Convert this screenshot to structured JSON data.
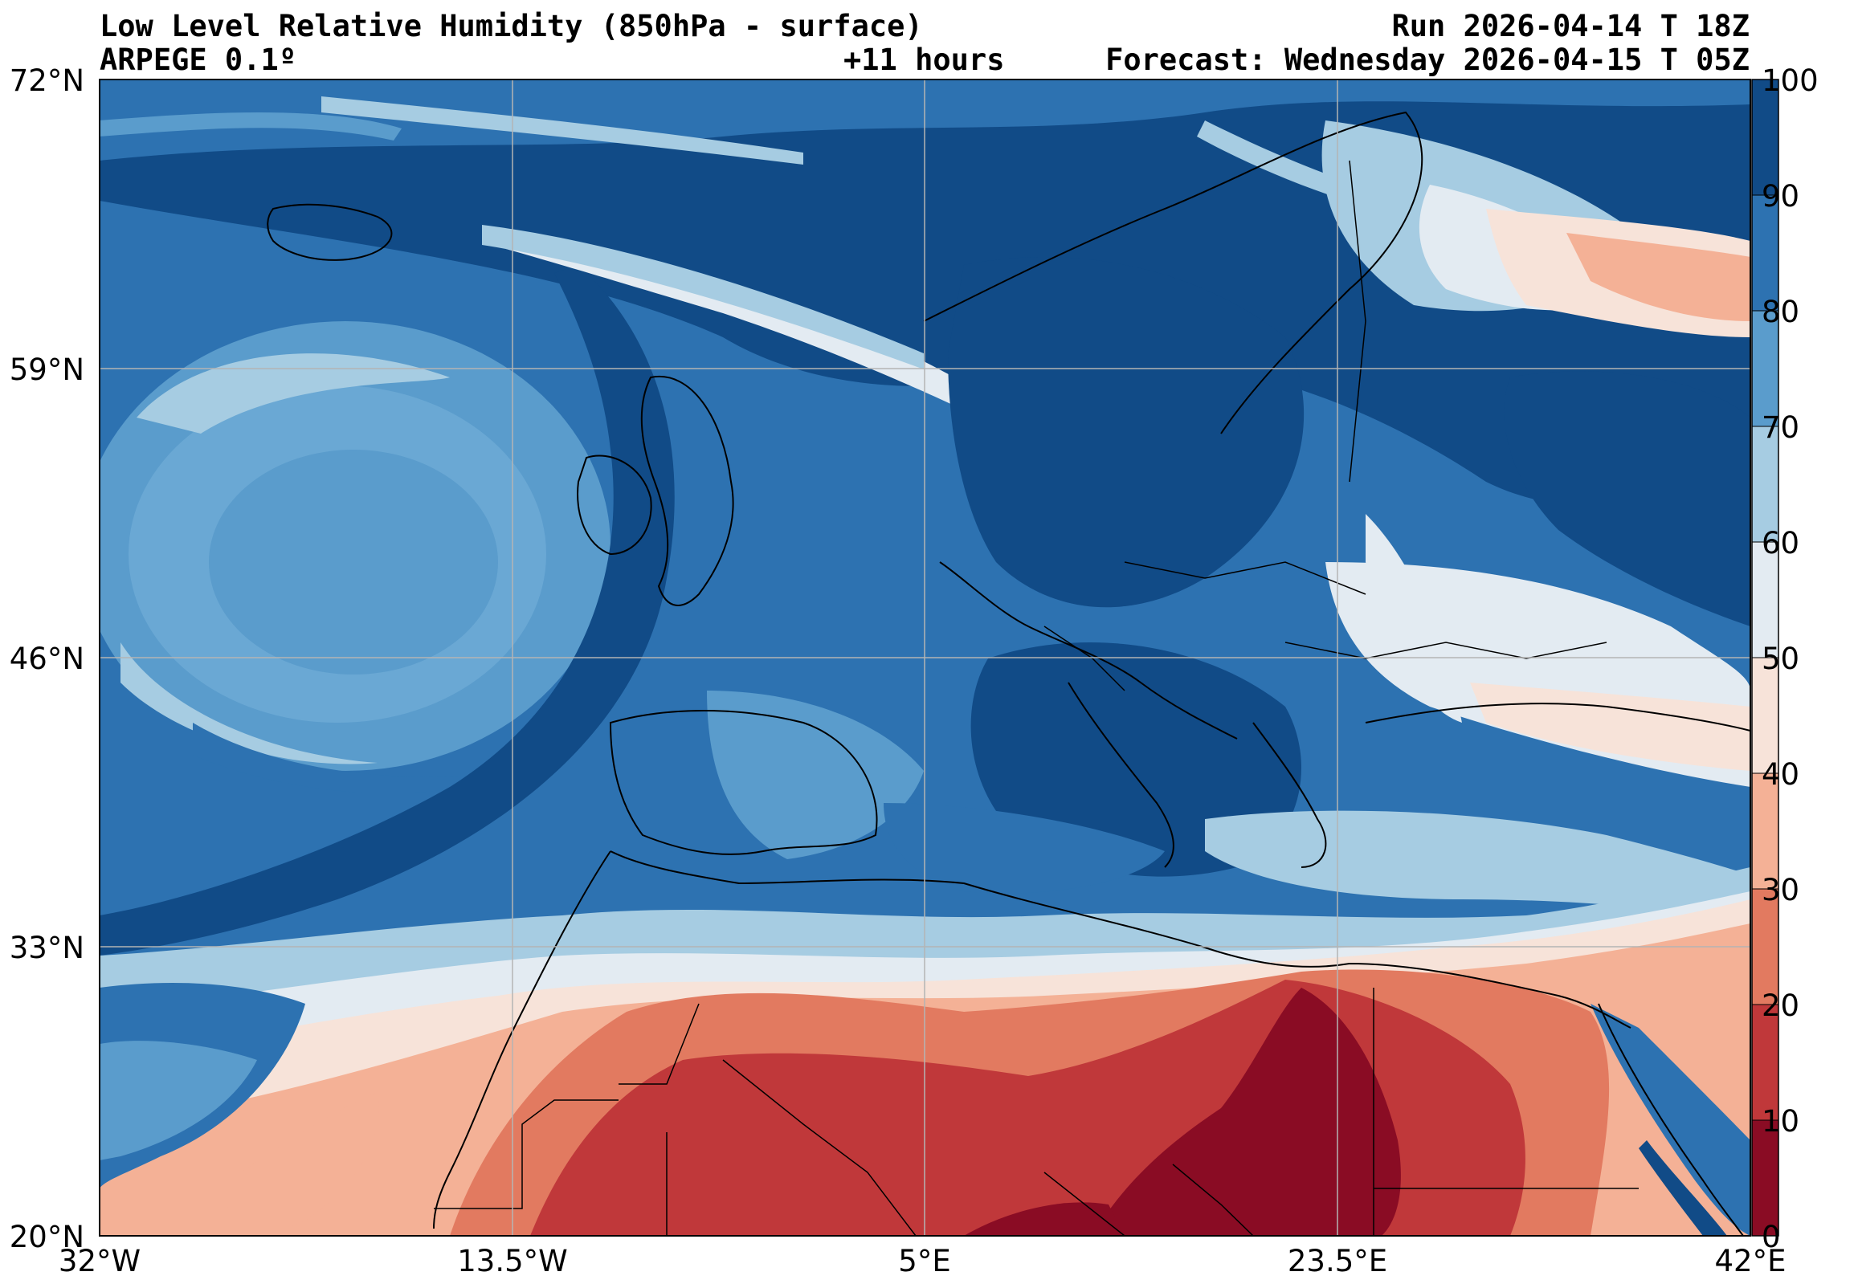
{
  "header": {
    "title": "Low Level Relative Humidity (850hPa - surface)",
    "model": "ARPEGE 0.1º",
    "run": "Run 2026-04-14 T 18Z",
    "lead_time": "+11 hours",
    "forecast": "Forecast: Wednesday 2026-04-15 T 05Z"
  },
  "axes": {
    "lat_labels": [
      "72°N",
      "59°N",
      "46°N",
      "33°N",
      "20°N"
    ],
    "lon_labels": [
      "32°W",
      "13.5°W",
      "5°E",
      "23.5°E",
      "42°E"
    ]
  },
  "colorbar": {
    "ticks": [
      "100",
      "90",
      "80",
      "70",
      "60",
      "50",
      "40",
      "30",
      "20",
      "10",
      "0"
    ],
    "colors": [
      "#114b87",
      "#2d72b1",
      "#5a9ccc",
      "#a6cce2",
      "#e3ebf2",
      "#f7e3d9",
      "#f4b196",
      "#e27a60",
      "#c0383a",
      "#8a0c24"
    ]
  },
  "palette": {
    "ocean_deep": "#114b87",
    "ocean_mid": "#2d72b1",
    "ocean_light": "#5a9ccc",
    "pale_blue": "#a6cce2",
    "near_white": "#e3ebf2",
    "pale_pink": "#f7e3d9",
    "salmon": "#f4b196",
    "red_orange": "#e27a60",
    "red": "#c0383a",
    "dark_red": "#8a0c24",
    "grid": "#b4b4b4",
    "coast": "#000000"
  }
}
